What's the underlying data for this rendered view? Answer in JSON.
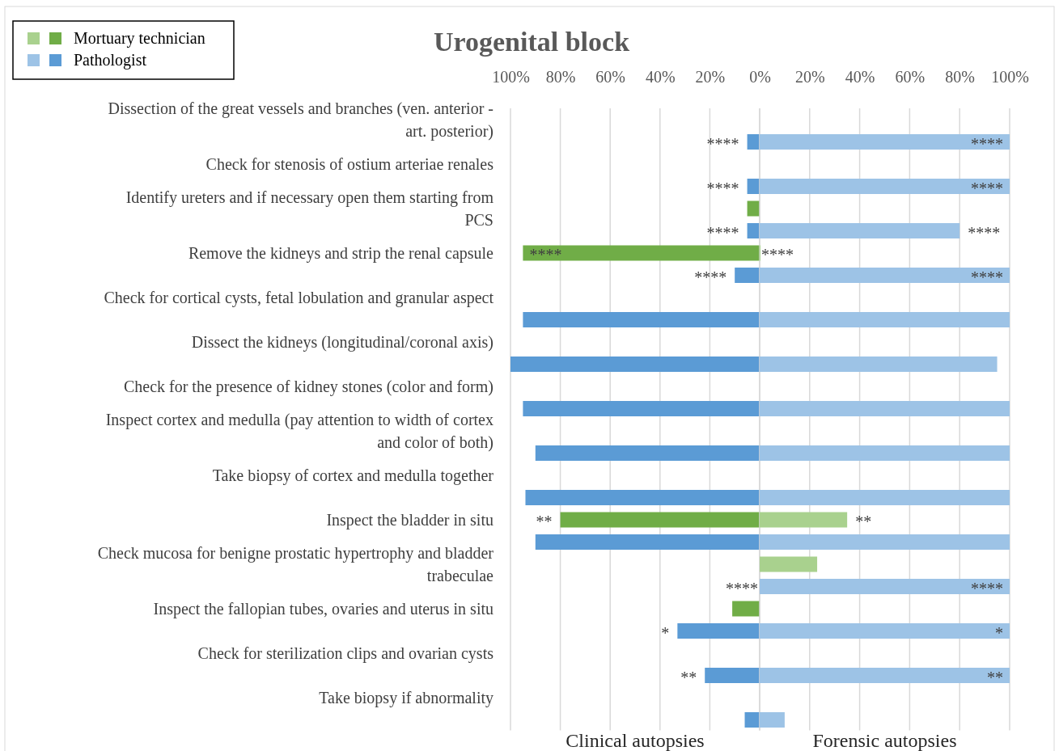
{
  "chart_data": [
    {
      "type": "bar",
      "orientation": "horizontal",
      "title": "Urogenital block",
      "xlabel": "Clinical autopsies",
      "categories": [
        "Dissection of the great vessels and branches (ven. anterior -\nart. posterior)",
        "Check for stenosis of ostium arteriae renales",
        "Identify ureters and if necessary open them starting from\nPCS",
        "Remove the kidneys and strip the renal capsule",
        "Check for cortical cysts, fetal lobulation and granular aspect",
        "Dissect the kidneys (longitudinal/coronal axis)",
        "Check for the presence of kidney stones (color and form)",
        "Inspect cortex  and medulla (pay attention to width of cortex\nand color of both)",
        "Take biopsy of cortex and medulla together",
        "Inspect the bladder in situ",
        "Check mucosa for benigne prostatic hypertrophy and bladder\ntrabeculae",
        "Inspect the fallopian tubes, ovaries and uterus in situ",
        "Check for sterilization clips and ovarian cysts",
        "Take biopsy if abnormality"
      ],
      "series": [
        {
          "name": "Mortuary technician",
          "color": "#70ad47",
          "values": [
            null,
            null,
            5,
            95,
            null,
            null,
            null,
            null,
            null,
            80,
            null,
            11,
            null,
            null
          ],
          "value_labels": [
            null,
            null,
            null,
            "****",
            null,
            null,
            null,
            null,
            null,
            "**",
            null,
            null,
            null,
            null
          ]
        },
        {
          "name": "Pathologist",
          "color": "#5b9bd5",
          "values": [
            5,
            5,
            5,
            10,
            95,
            100,
            95,
            90,
            94,
            90,
            0,
            33,
            22,
            6
          ],
          "value_labels": [
            "****",
            "****",
            "****",
            "****",
            null,
            null,
            null,
            null,
            null,
            null,
            "****",
            "*",
            "**",
            null
          ]
        }
      ],
      "xlim": [
        100,
        0
      ],
      "xticks": [
        {
          "value": 100,
          "label": "100%"
        },
        {
          "value": 80,
          "label": "80%"
        },
        {
          "value": 60,
          "label": "60%"
        },
        {
          "value": 40,
          "label": "40%"
        },
        {
          "value": 20,
          "label": "20%"
        },
        {
          "value": 0,
          "label": null
        }
      ],
      "grid": true,
      "legend": "top left"
    },
    {
      "type": "bar",
      "orientation": "horizontal",
      "xlabel": "Forensic autopsies",
      "tick_labels": "x",
      "series": [
        {
          "color": "#a9d18e",
          "values": [
            null,
            null,
            null,
            0,
            null,
            null,
            null,
            null,
            null,
            35,
            23,
            null,
            null,
            null
          ],
          "value_labels": [
            null,
            null,
            null,
            "****",
            null,
            null,
            null,
            null,
            null,
            "**",
            null,
            null,
            null,
            null
          ]
        },
        {
          "color": "#9dc3e6",
          "values": [
            100,
            100,
            80,
            100,
            100,
            95,
            100,
            100,
            100,
            100,
            100,
            100,
            100,
            10
          ],
          "value_labels": [
            "****",
            "****",
            "****",
            "****",
            null,
            null,
            null,
            null,
            null,
            null,
            "****",
            "*",
            "**",
            null
          ]
        }
      ],
      "xlim": [
        0,
        100
      ],
      "xticks": [
        {
          "value": 0,
          "label": "0%"
        },
        {
          "value": 20,
          "label": "20%"
        },
        {
          "value": 40,
          "label": "40%"
        },
        {
          "value": 60,
          "label": "60%"
        },
        {
          "value": 80,
          "label": "80%"
        },
        {
          "value": 100,
          "label": "100%"
        }
      ],
      "grid": true
    }
  ]
}
